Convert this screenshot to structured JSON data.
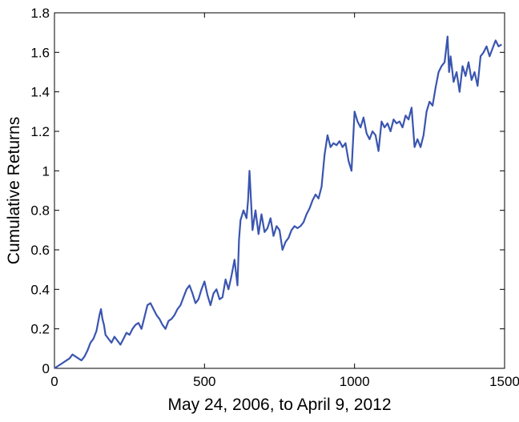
{
  "chart_data": {
    "type": "line",
    "xlabel": "May 24, 2006, to April 9, 2012",
    "ylabel": "Cumulative Returns",
    "xlim": [
      0,
      1500
    ],
    "ylim": [
      0,
      1.8
    ],
    "x_ticks": [
      0,
      500,
      1000,
      1500
    ],
    "x_tick_labels": [
      "0",
      "500",
      "1000",
      "1500"
    ],
    "y_ticks": [
      0,
      0.2,
      0.4,
      0.6,
      0.8,
      1.0,
      1.2,
      1.4,
      1.6,
      1.8
    ],
    "y_tick_labels": [
      "0",
      "0.2",
      "0.4",
      "0.6",
      "0.8",
      "1",
      "1.2",
      "1.4",
      "1.6",
      "1.8"
    ],
    "grid": false,
    "line_color": "#3a55b0",
    "series": [
      {
        "x": [
          0,
          10,
          20,
          30,
          40,
          50,
          60,
          70,
          80,
          90,
          100,
          110,
          120,
          130,
          140,
          150,
          155,
          160,
          165,
          170,
          180,
          190,
          200,
          210,
          220,
          230,
          240,
          250,
          260,
          270,
          280,
          290,
          300,
          310,
          320,
          330,
          340,
          350,
          360,
          370,
          380,
          390,
          400,
          410,
          420,
          430,
          440,
          450,
          460,
          470,
          480,
          490,
          500,
          510,
          520,
          530,
          540,
          550,
          560,
          570,
          580,
          590,
          600,
          610,
          615,
          620,
          630,
          640,
          645,
          650,
          660,
          670,
          680,
          690,
          700,
          710,
          720,
          730,
          740,
          750,
          760,
          770,
          780,
          790,
          800,
          810,
          820,
          830,
          840,
          850,
          860,
          870,
          880,
          890,
          900,
          910,
          920,
          930,
          940,
          950,
          960,
          970,
          980,
          990,
          1000,
          1010,
          1020,
          1030,
          1040,
          1050,
          1060,
          1070,
          1080,
          1090,
          1100,
          1110,
          1120,
          1130,
          1140,
          1150,
          1160,
          1170,
          1180,
          1190,
          1200,
          1210,
          1220,
          1230,
          1240,
          1250,
          1260,
          1270,
          1280,
          1290,
          1300,
          1310,
          1315,
          1320,
          1330,
          1340,
          1350,
          1360,
          1370,
          1380,
          1390,
          1400,
          1410,
          1420,
          1430,
          1440,
          1450,
          1460,
          1470,
          1480,
          1490
        ],
        "y": [
          0.0,
          0.01,
          0.02,
          0.03,
          0.04,
          0.05,
          0.07,
          0.06,
          0.05,
          0.04,
          0.06,
          0.09,
          0.13,
          0.15,
          0.19,
          0.27,
          0.3,
          0.25,
          0.22,
          0.17,
          0.15,
          0.13,
          0.16,
          0.14,
          0.12,
          0.15,
          0.18,
          0.17,
          0.2,
          0.22,
          0.23,
          0.2,
          0.26,
          0.32,
          0.33,
          0.3,
          0.27,
          0.25,
          0.22,
          0.2,
          0.24,
          0.25,
          0.27,
          0.3,
          0.32,
          0.36,
          0.4,
          0.42,
          0.38,
          0.33,
          0.35,
          0.4,
          0.44,
          0.37,
          0.32,
          0.38,
          0.4,
          0.35,
          0.36,
          0.45,
          0.4,
          0.47,
          0.55,
          0.42,
          0.65,
          0.75,
          0.8,
          0.76,
          0.85,
          1.0,
          0.7,
          0.8,
          0.68,
          0.78,
          0.69,
          0.71,
          0.76,
          0.67,
          0.72,
          0.7,
          0.6,
          0.64,
          0.66,
          0.7,
          0.72,
          0.71,
          0.72,
          0.74,
          0.78,
          0.81,
          0.85,
          0.88,
          0.86,
          0.92,
          1.08,
          1.18,
          1.12,
          1.14,
          1.13,
          1.15,
          1.12,
          1.14,
          1.05,
          1.0,
          1.3,
          1.25,
          1.22,
          1.27,
          1.19,
          1.16,
          1.2,
          1.18,
          1.1,
          1.25,
          1.22,
          1.24,
          1.2,
          1.26,
          1.24,
          1.25,
          1.22,
          1.28,
          1.26,
          1.32,
          1.12,
          1.16,
          1.12,
          1.18,
          1.3,
          1.35,
          1.33,
          1.42,
          1.5,
          1.53,
          1.55,
          1.68,
          1.5,
          1.58,
          1.45,
          1.5,
          1.4,
          1.53,
          1.48,
          1.55,
          1.46,
          1.5,
          1.43,
          1.58,
          1.6,
          1.63,
          1.58,
          1.62,
          1.66,
          1.63,
          1.64
        ]
      }
    ]
  }
}
